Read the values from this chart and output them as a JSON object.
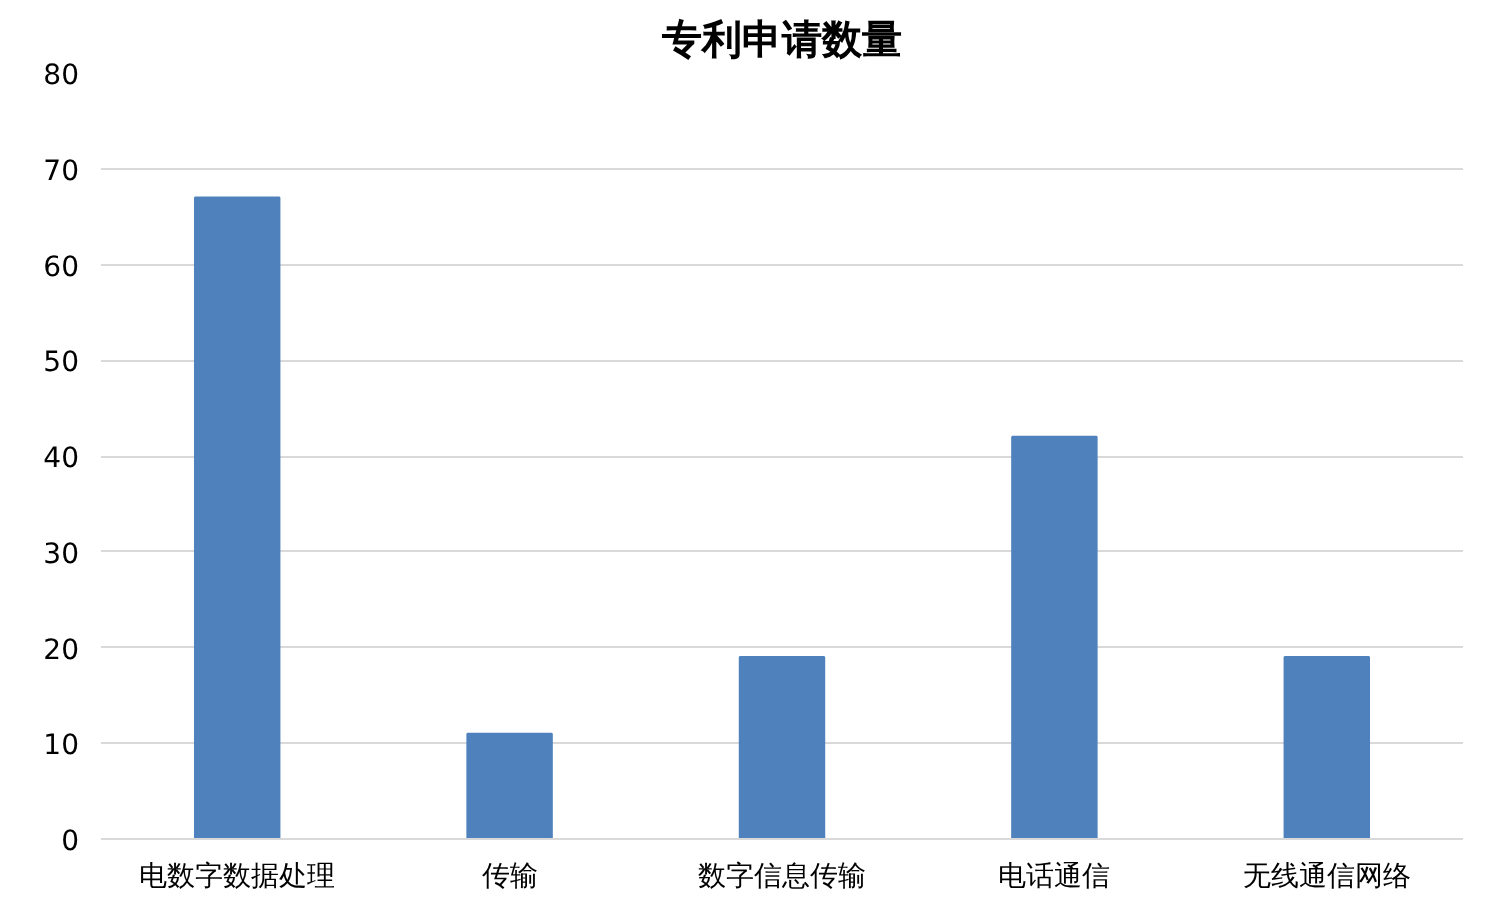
{
  "chart_data": {
    "type": "bar",
    "title": "专利申请数量",
    "categories": [
      "电数字数据处理",
      "传输",
      "数字信息传输",
      "电话通信",
      "无线通信网络"
    ],
    "values": [
      67,
      11,
      19,
      42,
      19
    ],
    "color": "#4f81bd",
    "ylim": [
      0,
      80
    ],
    "yticks": [
      0,
      10,
      20,
      30,
      40,
      50,
      60,
      70,
      80
    ],
    "grid": "y",
    "legend": false
  }
}
